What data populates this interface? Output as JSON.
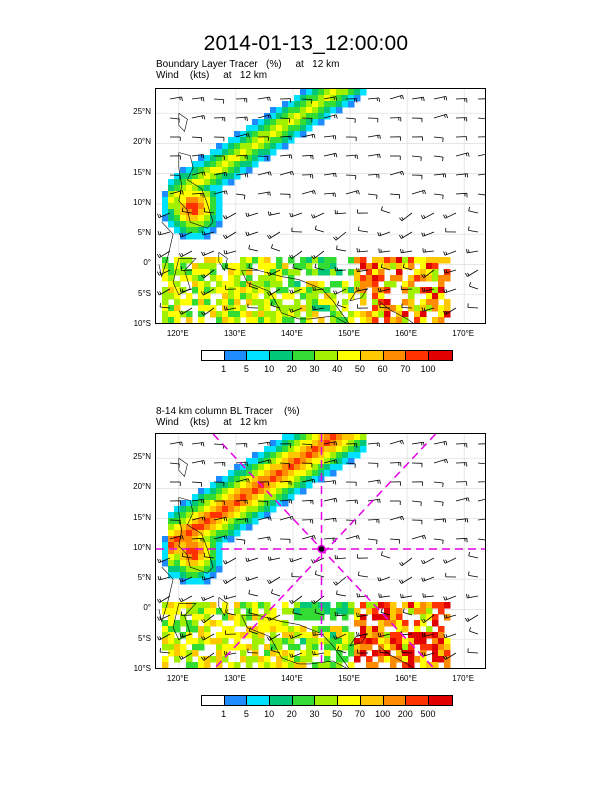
{
  "title": "2014-01-13_12:00:00",
  "panel1": {
    "line1": "Boundary Layer Tracer   (%)     at   12 km",
    "line2": "Wind    (kts)     at   12 km",
    "colorbar_labels": [
      "1",
      "5",
      "10",
      "20",
      "30",
      "40",
      "50",
      "60",
      "70",
      "100"
    ]
  },
  "panel2": {
    "line1": "8-14 km column BL Tracer    (%)",
    "line2": "Wind    (kts)     at   12 km",
    "colorbar_labels": [
      "1",
      "5",
      "10",
      "20",
      "30",
      "50",
      "70",
      "100",
      "200",
      "500"
    ]
  },
  "lat_labels": [
    "25°N",
    "20°N",
    "15°N",
    "10°N",
    "5°N",
    "0°",
    "5°S",
    "10°S"
  ],
  "lon_labels": [
    "120°E",
    "130°E",
    "140°E",
    "150°E",
    "160°E",
    "170°E"
  ],
  "colors": {
    "palette": [
      "#ffffff",
      "#1e8cff",
      "#00e0ff",
      "#00c878",
      "#32dc32",
      "#a0f000",
      "#ffff00",
      "#ffc800",
      "#ff8c00",
      "#ff3200",
      "#e00000"
    ],
    "cross_marker": "#e600e6",
    "coast": "#000000"
  },
  "map_extent": {
    "lon": [
      116,
      174
    ],
    "lat": [
      -10,
      29
    ]
  }
}
